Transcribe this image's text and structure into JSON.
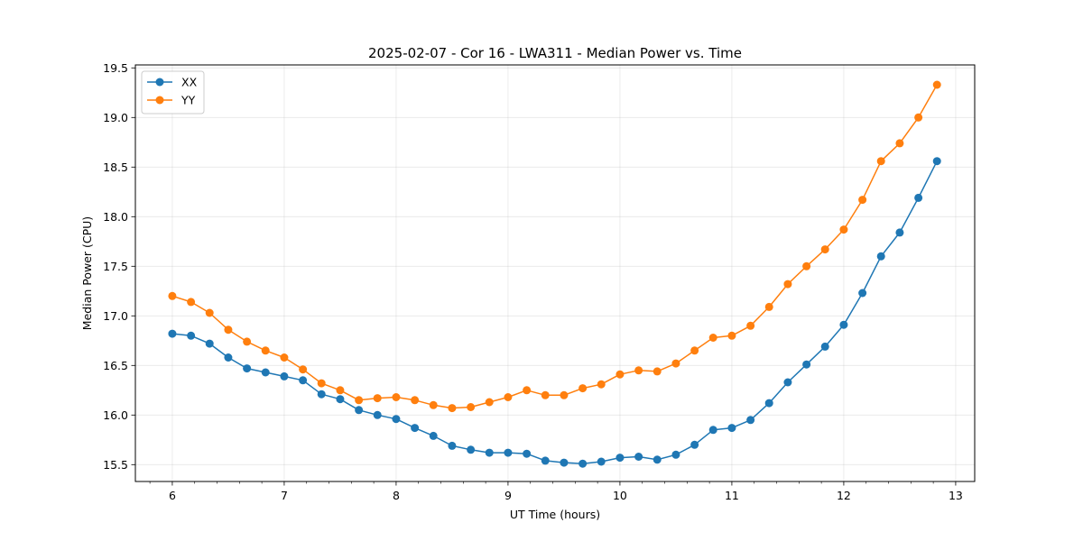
{
  "chart_data": {
    "type": "line",
    "title": "2025-02-07 - Cor 16 - LWA311 - Median Power vs. Time",
    "xlabel": "UT Time (hours)",
    "ylabel": "Median Power (CPU)",
    "xlim": [
      5.67,
      13.17
    ],
    "ylim": [
      15.33,
      19.53
    ],
    "xticks": [
      6,
      7,
      8,
      9,
      10,
      11,
      12,
      13
    ],
    "yticks": [
      15.5,
      16.0,
      16.5,
      17.0,
      17.5,
      18.0,
      18.5,
      19.0,
      19.5
    ],
    "grid": true,
    "legend_position": "top-left",
    "x": [
      6.0,
      6.167,
      6.333,
      6.5,
      6.667,
      6.833,
      7.0,
      7.167,
      7.333,
      7.5,
      7.667,
      7.833,
      8.0,
      8.167,
      8.333,
      8.5,
      8.667,
      8.833,
      9.0,
      9.167,
      9.333,
      9.5,
      9.667,
      9.833,
      10.0,
      10.167,
      10.333,
      10.5,
      10.667,
      10.833,
      11.0,
      11.167,
      11.333,
      11.5,
      11.667,
      11.833,
      12.0,
      12.167,
      12.333,
      12.5,
      12.667,
      12.833
    ],
    "series": [
      {
        "name": "XX",
        "color": "#1f77b4",
        "values": [
          16.82,
          16.8,
          16.72,
          16.58,
          16.47,
          16.43,
          16.39,
          16.35,
          16.21,
          16.16,
          16.05,
          16.0,
          15.96,
          15.87,
          15.79,
          15.69,
          15.65,
          15.62,
          15.62,
          15.61,
          15.54,
          15.52,
          15.51,
          15.53,
          15.57,
          15.58,
          15.55,
          15.6,
          15.7,
          15.85,
          15.87,
          15.95,
          16.12,
          16.33,
          16.51,
          16.69,
          16.91,
          17.23,
          17.6,
          17.84,
          18.19,
          18.56
        ]
      },
      {
        "name": "YY",
        "color": "#ff7f0e",
        "values": [
          17.2,
          17.14,
          17.03,
          16.86,
          16.74,
          16.65,
          16.58,
          16.46,
          16.32,
          16.25,
          16.15,
          16.17,
          16.18,
          16.15,
          16.1,
          16.07,
          16.08,
          16.13,
          16.18,
          16.25,
          16.2,
          16.2,
          16.27,
          16.31,
          16.41,
          16.45,
          16.44,
          16.52,
          16.65,
          16.78,
          16.8,
          16.9,
          17.09,
          17.32,
          17.5,
          17.67,
          17.87,
          18.17,
          18.56,
          18.74,
          19.0,
          19.33
        ]
      }
    ]
  }
}
